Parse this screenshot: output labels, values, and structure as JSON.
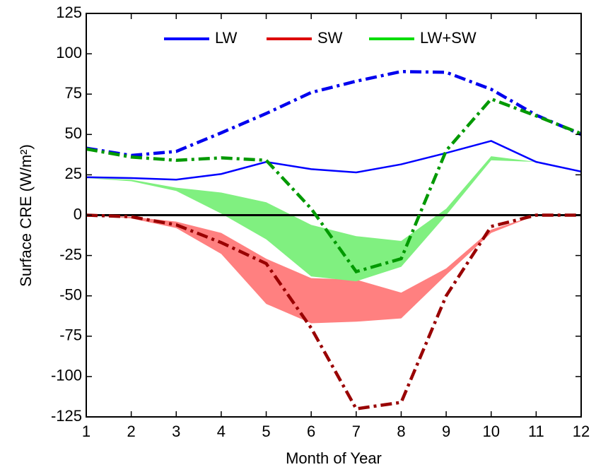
{
  "chart_data": {
    "type": "line",
    "x_label": "Month of Year",
    "y_label": "Surface CRE (W/m²)",
    "x": [
      1,
      2,
      3,
      4,
      5,
      6,
      7,
      8,
      9,
      10,
      11,
      12
    ],
    "xlim": [
      1,
      12
    ],
    "xticks": [
      1,
      2,
      3,
      4,
      5,
      6,
      7,
      8,
      9,
      10,
      11,
      12
    ],
    "ylim": [
      -125,
      125
    ],
    "yticks": [
      -125,
      -100,
      -75,
      -50,
      -25,
      0,
      25,
      50,
      75,
      100,
      125
    ],
    "legend": "top",
    "series": [
      {
        "name": "LW",
        "color": "#0000ff",
        "dash_color": "#0000ee",
        "values": [
          23.5,
          23,
          22,
          25.5,
          33,
          28.5,
          26.5,
          31.5,
          38.5,
          46,
          33,
          27
        ],
        "dashdot": [
          41.5,
          37,
          39.5,
          51,
          63,
          76,
          83,
          89,
          88.5,
          78,
          62,
          50
        ]
      },
      {
        "name": "SW",
        "color": "#dd0000",
        "dash_color": "#990000",
        "band_color": "#ff8080",
        "dashdot": [
          0,
          -1,
          -6,
          -17,
          -30,
          -70,
          -120,
          -116,
          -50,
          -7,
          0,
          0
        ],
        "band": {
          "upper": [
            0,
            -1,
            -4,
            -11,
            -27,
            -39,
            -40,
            -48,
            -33,
            -9,
            0,
            0
          ],
          "lower": [
            0,
            -2,
            -8,
            -24,
            -55,
            -67,
            -66,
            -64,
            -37,
            -11,
            0,
            0
          ]
        }
      },
      {
        "name": "LW+SW",
        "color": "#00dd00",
        "dash_color": "#009900",
        "band_color": "#80f080",
        "dashdot": [
          41,
          36,
          34,
          35.5,
          34,
          4,
          -35,
          -27,
          40,
          72,
          61.5,
          50.5
        ],
        "band": {
          "upper": [
            23,
            22,
            17,
            14,
            8,
            -6,
            -13,
            -16,
            4,
            36.5,
            33,
            27
          ],
          "lower": [
            23,
            21,
            15,
            1,
            -15,
            -38,
            -41,
            -32,
            0,
            34,
            33,
            27
          ]
        }
      }
    ]
  }
}
